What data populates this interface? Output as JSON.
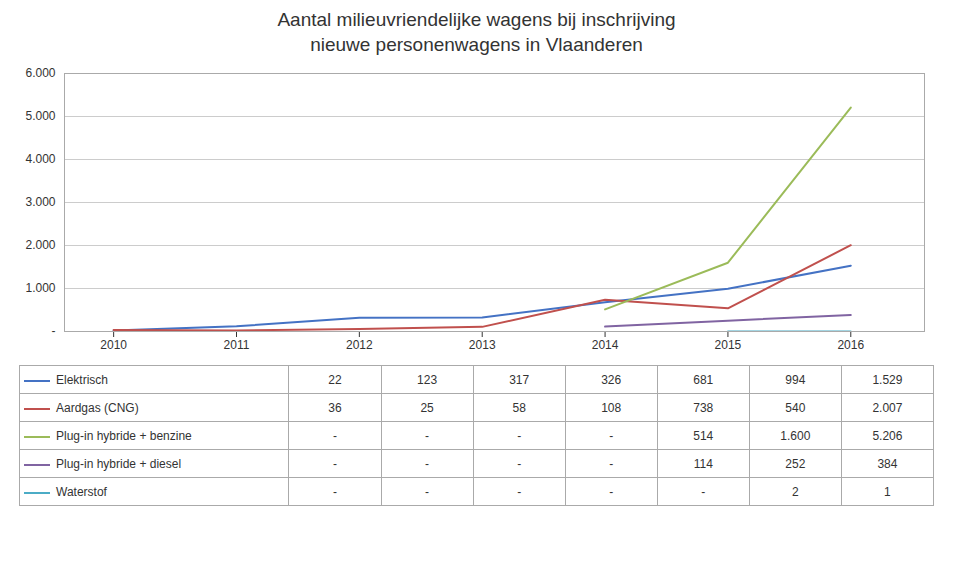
{
  "chart_data": {
    "type": "line",
    "title": "Aantal milieuvriendelijke wagens bij inschrijving\nnieuwe personenwagens in Vlaanderen",
    "x": [
      2010,
      2011,
      2012,
      2013,
      2014,
      2015,
      2016
    ],
    "series": [
      {
        "name": "Elektrisch",
        "color": "#4472C4",
        "values": [
          22,
          123,
          317,
          326,
          681,
          994,
          1529
        ],
        "value_labels": [
          "22",
          "123",
          "317",
          "326",
          "681",
          "994",
          "1.529"
        ]
      },
      {
        "name": "Aardgas (CNG)",
        "color": "#C0504D",
        "values": [
          36,
          25,
          58,
          108,
          738,
          540,
          2007
        ],
        "value_labels": [
          "36",
          "25",
          "58",
          "108",
          "738",
          "540",
          "2.007"
        ]
      },
      {
        "name": "Plug-in hybride + benzine",
        "color": "#9BBB59",
        "values": [
          null,
          null,
          null,
          null,
          514,
          1600,
          5206
        ],
        "value_labels": [
          "-",
          "-",
          "-",
          "-",
          "514",
          "1.600",
          "5.206"
        ]
      },
      {
        "name": "Plug-in hybride + diesel",
        "color": "#8064A2",
        "values": [
          null,
          null,
          null,
          null,
          114,
          252,
          384
        ],
        "value_labels": [
          "-",
          "-",
          "-",
          "-",
          "114",
          "252",
          "384"
        ]
      },
      {
        "name": "Waterstof",
        "color": "#4BACC6",
        "values": [
          null,
          null,
          null,
          null,
          null,
          2,
          1
        ],
        "value_labels": [
          "-",
          "-",
          "-",
          "-",
          "-",
          "2",
          "1"
        ]
      }
    ],
    "xlim": [
      2009.6,
      2016.6
    ],
    "xticks": [
      2010,
      2011,
      2012,
      2013,
      2014,
      2015,
      2016
    ],
    "ylim": [
      0,
      6000
    ],
    "yticks": [
      {
        "value": 0,
        "label": "-"
      },
      {
        "value": 1000,
        "label": "1.000"
      },
      {
        "value": 2000,
        "label": "2.000"
      },
      {
        "value": 3000,
        "label": "3.000"
      },
      {
        "value": 4000,
        "label": "4.000"
      },
      {
        "value": 5000,
        "label": "5.000"
      },
      {
        "value": 6000,
        "label": "6.000"
      }
    ],
    "grid": true,
    "legend": "bottom"
  }
}
